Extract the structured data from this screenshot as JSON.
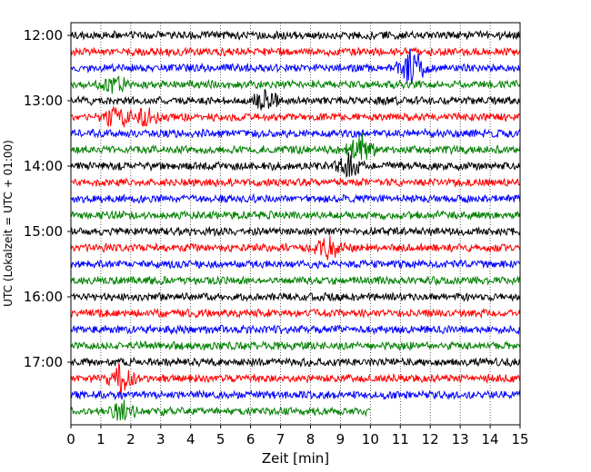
{
  "chart_data": {
    "type": "line",
    "title": "",
    "xlabel": "Zeit  [min]",
    "ylabel": "UTC (Lokalzeit = UTC + 01:00)",
    "xlim": [
      0,
      15
    ],
    "x_ticks": [
      0,
      1,
      2,
      3,
      4,
      5,
      6,
      7,
      8,
      9,
      10,
      11,
      12,
      13,
      14,
      15
    ],
    "x_tick_labels": [
      "0",
      "1",
      "2",
      "3",
      "4",
      "5",
      "6",
      "7",
      "8",
      "9",
      "10",
      "11",
      "12",
      "13",
      "14",
      "15"
    ],
    "y_tick_labels": [
      "12:00",
      "13:00",
      "14:00",
      "15:00",
      "16:00",
      "17:00"
    ],
    "grid": {
      "vertical_dotted": true
    },
    "colors": {
      "black": "#000000",
      "red": "#ff0000",
      "blue": "#0000ff",
      "green": "#008000"
    },
    "traces": [
      {
        "start": "12:00",
        "color": "black",
        "end_min": 15
      },
      {
        "start": "12:15",
        "color": "red",
        "end_min": 15
      },
      {
        "start": "12:30",
        "color": "blue",
        "end_min": 15
      },
      {
        "start": "12:45",
        "color": "green",
        "end_min": 15
      },
      {
        "start": "13:00",
        "color": "black",
        "end_min": 15
      },
      {
        "start": "13:15",
        "color": "red",
        "end_min": 15
      },
      {
        "start": "13:30",
        "color": "blue",
        "end_min": 15
      },
      {
        "start": "13:45",
        "color": "green",
        "end_min": 15
      },
      {
        "start": "14:00",
        "color": "black",
        "end_min": 15
      },
      {
        "start": "14:15",
        "color": "red",
        "end_min": 15
      },
      {
        "start": "14:30",
        "color": "blue",
        "end_min": 15
      },
      {
        "start": "14:45",
        "color": "green",
        "end_min": 15
      },
      {
        "start": "15:00",
        "color": "black",
        "end_min": 15
      },
      {
        "start": "15:15",
        "color": "red",
        "end_min": 15
      },
      {
        "start": "15:30",
        "color": "blue",
        "end_min": 15
      },
      {
        "start": "15:45",
        "color": "green",
        "end_min": 15
      },
      {
        "start": "16:00",
        "color": "black",
        "end_min": 15
      },
      {
        "start": "16:15",
        "color": "red",
        "end_min": 15
      },
      {
        "start": "16:30",
        "color": "blue",
        "end_min": 15
      },
      {
        "start": "16:45",
        "color": "green",
        "end_min": 15
      },
      {
        "start": "17:00",
        "color": "black",
        "end_min": 15
      },
      {
        "start": "17:15",
        "color": "red",
        "end_min": 15
      },
      {
        "start": "17:30",
        "color": "blue",
        "end_min": 15
      },
      {
        "start": "17:45",
        "color": "green",
        "end_min": 10
      }
    ],
    "events": [
      {
        "trace": 2,
        "minute": 11.4,
        "amp": 4.5
      },
      {
        "trace": 3,
        "minute": 1.4,
        "amp": 2.0
      },
      {
        "trace": 4,
        "minute": 6.5,
        "amp": 2.2
      },
      {
        "trace": 5,
        "minute": 1.5,
        "amp": 3.0
      },
      {
        "trace": 5,
        "minute": 2.5,
        "amp": 2.0
      },
      {
        "trace": 7,
        "minute": 9.7,
        "amp": 3.5
      },
      {
        "trace": 8,
        "minute": 9.3,
        "amp": 3.0
      },
      {
        "trace": 13,
        "minute": 8.6,
        "amp": 2.5
      },
      {
        "trace": 21,
        "minute": 1.7,
        "amp": 4.5
      },
      {
        "trace": 23,
        "minute": 1.75,
        "amp": 2.5
      }
    ]
  }
}
